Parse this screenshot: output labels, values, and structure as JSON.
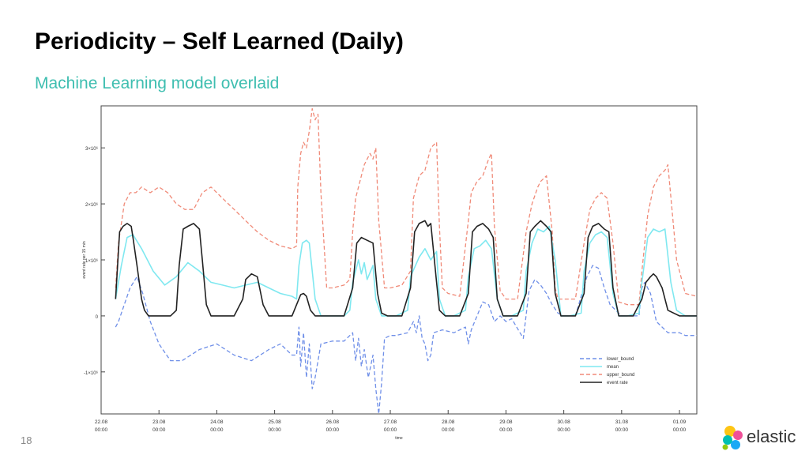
{
  "slide": {
    "title": "Periodicity – Self Learned (Daily)",
    "subtitle": "Machine Learning model overlaid",
    "page_number": "18",
    "logo_text": "elastic"
  },
  "colors": {
    "subtitle": "#3ebeb0",
    "lower_bound": "#6f8fe8",
    "mean": "#7fe8f0",
    "upper_bound": "#f08a78",
    "event_rate": "#222222"
  },
  "chart_data": {
    "type": "line",
    "title": "",
    "xlabel": "time",
    "ylabel": "event rate per 15 min",
    "xlim": [
      0,
      10.3
    ],
    "ylim": [
      -1.75,
      3.75
    ],
    "y_unit_note": "values in units of 10^6",
    "x_ticks": [
      {
        "pos": 0,
        "label": "22.08",
        "sub": "00:00"
      },
      {
        "pos": 1,
        "label": "23.08",
        "sub": "00:00"
      },
      {
        "pos": 2,
        "label": "24.08",
        "sub": "00:00"
      },
      {
        "pos": 3,
        "label": "25.08",
        "sub": "00:00"
      },
      {
        "pos": 4,
        "label": "26.08",
        "sub": "00:00"
      },
      {
        "pos": 5,
        "label": "27.08",
        "sub": "00:00"
      },
      {
        "pos": 6,
        "label": "28.08",
        "sub": "00:00"
      },
      {
        "pos": 7,
        "label": "29.08",
        "sub": "00:00"
      },
      {
        "pos": 8,
        "label": "30.08",
        "sub": "00:00"
      },
      {
        "pos": 9,
        "label": "31.08",
        "sub": "00:00"
      },
      {
        "pos": 10,
        "label": "01.09",
        "sub": "00:00"
      }
    ],
    "y_ticks": [
      {
        "value": 3,
        "label": "3×10⁶"
      },
      {
        "value": 2,
        "label": "2×10⁶"
      },
      {
        "value": 1,
        "label": "1×10⁶"
      },
      {
        "value": 0,
        "label": "0"
      },
      {
        "value": -1,
        "label": "-1×10⁶"
      }
    ],
    "legend": {
      "position": "bottom-right"
    },
    "grid": false,
    "series": [
      {
        "name": "lower_bound",
        "style": "dashed",
        "x": [
          0.25,
          0.3,
          0.4,
          0.5,
          0.62,
          0.72,
          0.85,
          1.0,
          1.2,
          1.4,
          1.7,
          2.0,
          2.3,
          2.6,
          2.9,
          3.1,
          3.2,
          3.3,
          3.38,
          3.42,
          3.45,
          3.5,
          3.55,
          3.6,
          3.65,
          3.7,
          3.8,
          4.0,
          4.2,
          4.35,
          4.4,
          4.45,
          4.5,
          4.55,
          4.62,
          4.7,
          4.75,
          4.8,
          4.85,
          4.9,
          5.0,
          5.1,
          5.3,
          5.4,
          5.45,
          5.5,
          5.55,
          5.6,
          5.65,
          5.7,
          5.75,
          5.9,
          6.1,
          6.3,
          6.35,
          6.4,
          6.5,
          6.6,
          6.7,
          6.8,
          6.9,
          7.0,
          7.1,
          7.3,
          7.4,
          7.5,
          7.6,
          7.7,
          7.8,
          7.9,
          8.0,
          8.2,
          8.4,
          8.5,
          8.6,
          8.7,
          8.8,
          9.0,
          9.3,
          9.35,
          9.4,
          9.5,
          9.6,
          9.7,
          9.8,
          9.9,
          10.0,
          10.1,
          10.3
        ],
        "y": [
          -0.2,
          -0.1,
          0.2,
          0.5,
          0.7,
          0.4,
          -0.1,
          -0.5,
          -0.8,
          -0.8,
          -0.6,
          -0.5,
          -0.7,
          -0.8,
          -0.6,
          -0.5,
          -0.6,
          -0.7,
          -0.7,
          -0.2,
          -0.9,
          -0.3,
          -1.1,
          -0.5,
          -1.3,
          -1.1,
          -0.5,
          -0.45,
          -0.45,
          -0.3,
          -0.8,
          -0.4,
          -0.9,
          -0.6,
          -1.1,
          -0.7,
          -1.3,
          -1.75,
          -1.2,
          -0.4,
          -0.35,
          -0.35,
          -0.3,
          -0.1,
          -0.3,
          0.0,
          -0.4,
          -0.5,
          -0.8,
          -0.7,
          -0.3,
          -0.25,
          -0.3,
          -0.2,
          -0.5,
          -0.25,
          0.0,
          0.25,
          0.2,
          -0.1,
          0.0,
          -0.1,
          -0.05,
          -0.4,
          0.45,
          0.65,
          0.55,
          0.4,
          0.2,
          0.05,
          0.0,
          0.0,
          0.7,
          0.9,
          0.85,
          0.5,
          0.2,
          0.0,
          0.0,
          0.5,
          0.6,
          0.4,
          -0.1,
          -0.2,
          -0.3,
          -0.3,
          -0.3,
          -0.35,
          -0.35
        ]
      },
      {
        "name": "mean",
        "style": "solid",
        "x": [
          0.25,
          0.35,
          0.45,
          0.55,
          0.7,
          0.9,
          1.1,
          1.3,
          1.5,
          1.7,
          1.9,
          2.1,
          2.3,
          2.5,
          2.7,
          2.9,
          3.1,
          3.3,
          3.38,
          3.42,
          3.48,
          3.55,
          3.6,
          3.7,
          3.8,
          4.0,
          4.2,
          4.3,
          4.35,
          4.45,
          4.5,
          4.55,
          4.6,
          4.7,
          4.75,
          4.85,
          4.95,
          5.1,
          5.3,
          5.35,
          5.5,
          5.6,
          5.7,
          5.8,
          5.85,
          5.95,
          6.1,
          6.3,
          6.35,
          6.45,
          6.55,
          6.65,
          6.75,
          6.85,
          6.95,
          7.1,
          7.3,
          7.35,
          7.45,
          7.55,
          7.65,
          7.75,
          7.85,
          7.95,
          8.1,
          8.3,
          8.35,
          8.45,
          8.55,
          8.65,
          8.75,
          8.85,
          8.95,
          9.1,
          9.3,
          9.35,
          9.45,
          9.55,
          9.65,
          9.75,
          9.85,
          9.95,
          10.1,
          10.3
        ],
        "y": [
          0.3,
          0.9,
          1.4,
          1.45,
          1.2,
          0.8,
          0.55,
          0.7,
          0.95,
          0.8,
          0.6,
          0.55,
          0.5,
          0.55,
          0.6,
          0.5,
          0.4,
          0.35,
          0.3,
          0.9,
          1.3,
          1.35,
          1.3,
          0.3,
          0.0,
          0.0,
          0.0,
          0.1,
          0.6,
          1.0,
          0.75,
          0.95,
          0.65,
          0.9,
          0.3,
          0.0,
          0.0,
          0.0,
          0.1,
          0.7,
          1.05,
          1.2,
          1.0,
          1.15,
          0.3,
          0.0,
          0.0,
          0.1,
          0.7,
          1.2,
          1.25,
          1.35,
          1.2,
          0.3,
          0.0,
          0.0,
          0.1,
          0.8,
          1.3,
          1.55,
          1.5,
          1.6,
          1.0,
          0.0,
          0.0,
          0.05,
          0.8,
          1.3,
          1.45,
          1.5,
          1.4,
          0.4,
          0.0,
          0.0,
          0.05,
          0.6,
          1.4,
          1.55,
          1.5,
          1.55,
          0.6,
          0.1,
          0.0,
          0.0
        ]
      },
      {
        "name": "upper_bound",
        "style": "dashed",
        "x": [
          0.25,
          0.3,
          0.4,
          0.5,
          0.6,
          0.7,
          0.85,
          1.0,
          1.15,
          1.3,
          1.45,
          1.6,
          1.75,
          1.9,
          2.1,
          2.3,
          2.5,
          2.7,
          2.9,
          3.1,
          3.3,
          3.38,
          3.4,
          3.45,
          3.5,
          3.55,
          3.6,
          3.65,
          3.7,
          3.75,
          3.8,
          3.9,
          4.0,
          4.2,
          4.3,
          4.35,
          4.4,
          4.5,
          4.55,
          4.6,
          4.65,
          4.7,
          4.75,
          4.8,
          4.9,
          5.0,
          5.2,
          5.35,
          5.4,
          5.5,
          5.6,
          5.7,
          5.75,
          5.8,
          5.85,
          5.9,
          6.0,
          6.2,
          6.35,
          6.4,
          6.5,
          6.6,
          6.7,
          6.75,
          6.8,
          6.9,
          7.0,
          7.2,
          7.35,
          7.45,
          7.55,
          7.6,
          7.7,
          7.8,
          7.85,
          7.9,
          8.0,
          8.2,
          8.35,
          8.45,
          8.55,
          8.65,
          8.75,
          8.85,
          8.95,
          9.1,
          9.3,
          9.35,
          9.45,
          9.55,
          9.65,
          9.75,
          9.8,
          9.95,
          10.1,
          10.3
        ],
        "y": [
          0.5,
          1.3,
          2.0,
          2.2,
          2.2,
          2.3,
          2.2,
          2.3,
          2.2,
          2.0,
          1.9,
          1.9,
          2.2,
          2.3,
          2.1,
          1.9,
          1.7,
          1.5,
          1.35,
          1.25,
          1.2,
          1.25,
          2.3,
          2.9,
          3.1,
          3.0,
          3.3,
          3.7,
          3.5,
          3.6,
          2.2,
          0.5,
          0.5,
          0.55,
          0.65,
          1.5,
          2.1,
          2.5,
          2.7,
          2.8,
          2.9,
          2.8,
          3.0,
          1.7,
          0.5,
          0.5,
          0.55,
          0.8,
          2.1,
          2.5,
          2.6,
          3.0,
          3.05,
          3.1,
          1.6,
          0.5,
          0.4,
          0.35,
          1.7,
          2.2,
          2.4,
          2.5,
          2.8,
          2.9,
          1.6,
          0.45,
          0.3,
          0.3,
          1.5,
          2.0,
          2.3,
          2.4,
          2.5,
          1.5,
          0.5,
          0.3,
          0.3,
          0.3,
          1.3,
          1.9,
          2.1,
          2.2,
          2.1,
          1.3,
          0.25,
          0.2,
          0.2,
          0.8,
          1.8,
          2.3,
          2.5,
          2.6,
          2.7,
          1.0,
          0.4,
          0.35
        ]
      },
      {
        "name": "event rate",
        "style": "solid",
        "x": [
          0.25,
          0.32,
          0.38,
          0.45,
          0.52,
          0.55,
          0.62,
          0.7,
          0.75,
          0.82,
          0.9,
          1.0,
          1.2,
          1.3,
          1.35,
          1.42,
          1.5,
          1.6,
          1.7,
          1.75,
          1.82,
          1.9,
          2.1,
          2.3,
          2.45,
          2.5,
          2.6,
          2.7,
          2.8,
          2.9,
          3.3,
          3.38,
          3.45,
          3.5,
          3.55,
          3.62,
          3.7,
          3.8,
          4.0,
          4.2,
          4.35,
          4.42,
          4.5,
          4.6,
          4.7,
          4.78,
          4.85,
          4.95,
          5.2,
          5.35,
          5.42,
          5.5,
          5.6,
          5.65,
          5.7,
          5.8,
          5.85,
          5.95,
          6.2,
          6.35,
          6.42,
          6.5,
          6.6,
          6.7,
          6.78,
          6.85,
          6.95,
          7.2,
          7.35,
          7.42,
          7.5,
          7.6,
          7.7,
          7.78,
          7.85,
          7.95,
          8.2,
          8.35,
          8.42,
          8.5,
          8.6,
          8.7,
          8.78,
          8.85,
          8.95,
          9.2,
          9.35,
          9.42,
          9.5,
          9.55,
          9.6,
          9.7,
          9.8,
          10.0,
          10.3
        ],
        "y": [
          0.3,
          1.5,
          1.6,
          1.65,
          1.6,
          1.4,
          0.9,
          0.3,
          0.1,
          0.0,
          0.0,
          0.0,
          0.0,
          0.1,
          0.9,
          1.55,
          1.6,
          1.65,
          1.55,
          1.0,
          0.2,
          0.0,
          0.0,
          0.0,
          0.3,
          0.65,
          0.75,
          0.7,
          0.2,
          0.0,
          0.0,
          0.2,
          0.38,
          0.4,
          0.35,
          0.1,
          0.0,
          0.0,
          0.0,
          0.0,
          0.5,
          1.3,
          1.4,
          1.35,
          1.3,
          0.4,
          0.05,
          0.0,
          0.0,
          0.5,
          1.5,
          1.65,
          1.7,
          1.6,
          1.65,
          0.6,
          0.1,
          0.0,
          0.0,
          0.4,
          1.5,
          1.6,
          1.65,
          1.55,
          1.4,
          0.3,
          0.0,
          0.0,
          0.4,
          1.5,
          1.6,
          1.7,
          1.6,
          1.5,
          0.4,
          0.0,
          0.0,
          0.4,
          1.4,
          1.6,
          1.65,
          1.55,
          1.5,
          0.5,
          0.0,
          0.0,
          0.3,
          0.6,
          0.7,
          0.75,
          0.7,
          0.5,
          0.1,
          0.0,
          0.0
        ]
      }
    ]
  }
}
